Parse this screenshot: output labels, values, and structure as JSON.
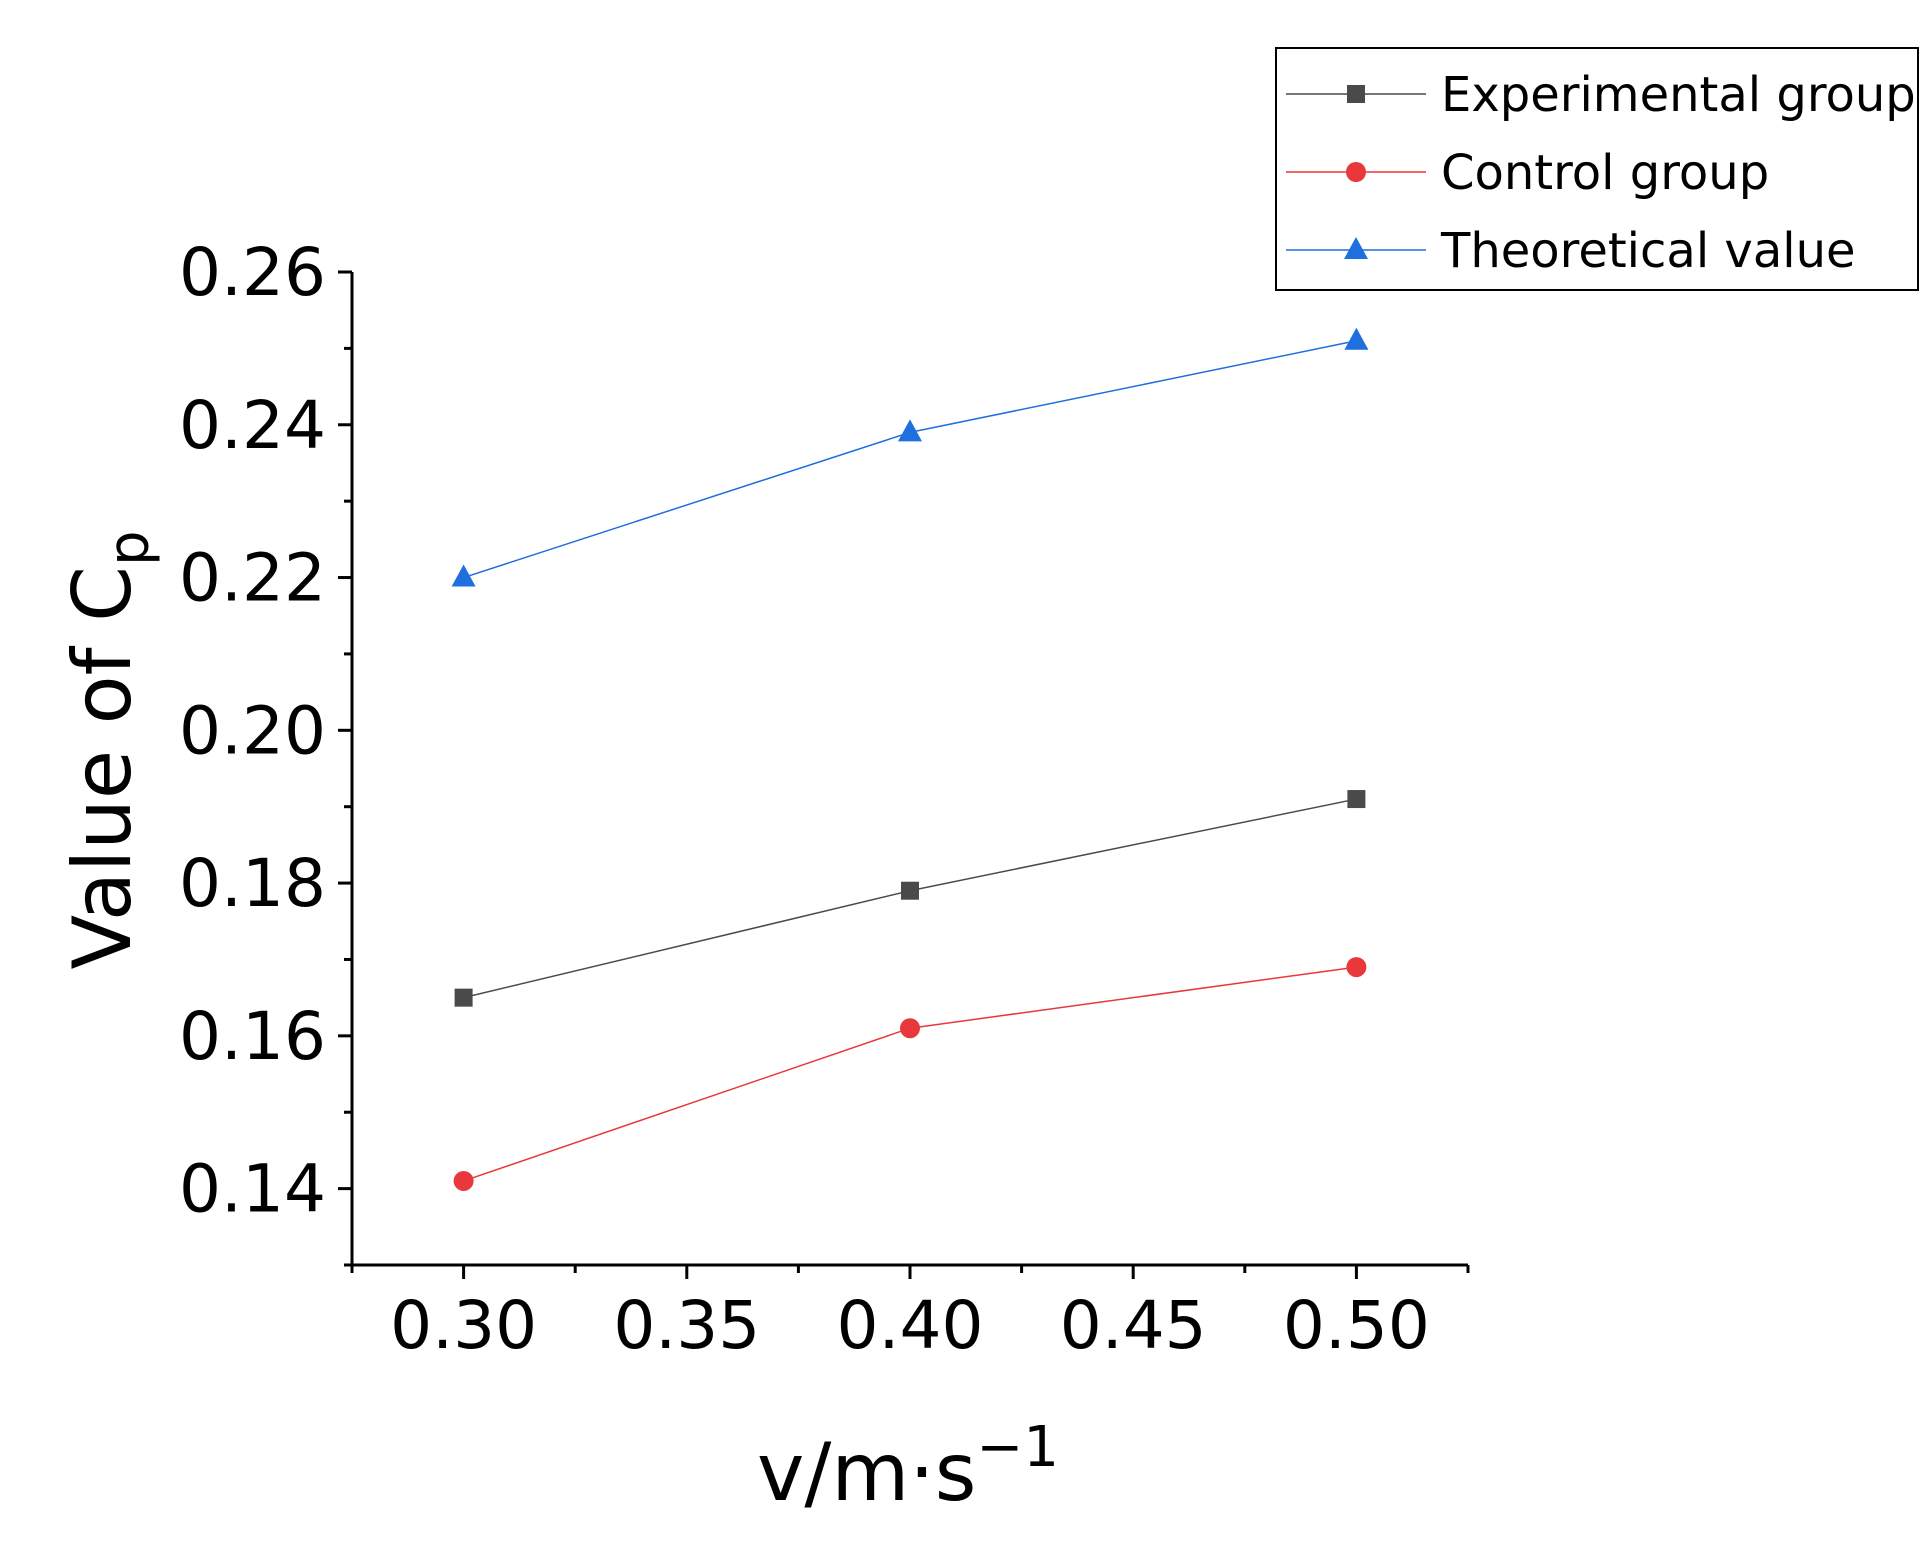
{
  "chart_data": {
    "type": "line",
    "title": "",
    "xlabel": "v/m·s",
    "xlabel_sup": "−1",
    "ylabel": "Value of C",
    "ylabel_sub": "p",
    "x": [
      0.3,
      0.4,
      0.5
    ],
    "xlim": [
      0.275,
      0.525
    ],
    "ylim": [
      0.13,
      0.26
    ],
    "x_ticks": [
      0.3,
      0.35,
      0.4,
      0.45,
      0.5
    ],
    "x_tick_labels": [
      "0.30",
      "0.35",
      "0.40",
      "0.45",
      "0.50"
    ],
    "y_ticks": [
      0.14,
      0.16,
      0.18,
      0.2,
      0.22,
      0.24,
      0.26
    ],
    "y_tick_labels": [
      "0.14",
      "0.16",
      "0.18",
      "0.20",
      "0.22",
      "0.24",
      "0.26"
    ],
    "grid": false,
    "legend_position": "top-right",
    "series": [
      {
        "name": "Experimental group",
        "color": "#4a4a4a",
        "marker": "square",
        "values": [
          0.165,
          0.179,
          0.191
        ]
      },
      {
        "name": "Control group",
        "color": "#e8383b",
        "marker": "circle",
        "values": [
          0.141,
          0.161,
          0.169
        ]
      },
      {
        "name": "Theoretical value",
        "color": "#1f6fde",
        "marker": "triangle",
        "values": [
          0.22,
          0.239,
          0.251
        ]
      }
    ]
  }
}
